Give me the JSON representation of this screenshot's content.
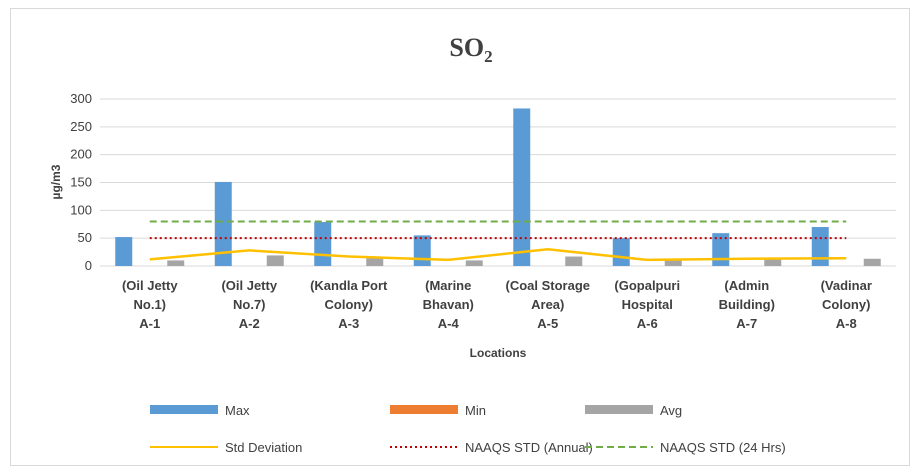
{
  "chart_data": {
    "type": "bar",
    "title": "SO",
    "title_subscript": "2",
    "ylabel": "µg/m3",
    "xlabel": "Locations",
    "ylim": [
      0,
      300
    ],
    "yticks": [
      0,
      50,
      100,
      150,
      200,
      250,
      300
    ],
    "grid": true,
    "legend_position": "bottom",
    "categories": [
      [
        "(Oil Jetty",
        "No.1)",
        "A-1"
      ],
      [
        "(Oil Jetty",
        "No.7)",
        "A-2"
      ],
      [
        "(Kandla Port",
        "Colony)",
        "A-3"
      ],
      [
        "(Marine",
        "Bhavan)",
        "A-4"
      ],
      [
        "(Coal Storage",
        "Area)",
        "A-5"
      ],
      [
        "(Gopalpuri",
        "Hospital",
        "A-6"
      ],
      [
        "(Admin",
        "Building)",
        "A-7"
      ],
      [
        "(Vadinar",
        "Colony)",
        "A-8"
      ]
    ],
    "series": [
      {
        "name": "Max",
        "kind": "bar",
        "color": "#5b9bd5",
        "values": [
          52,
          151,
          79,
          55,
          283,
          50,
          59,
          70
        ]
      },
      {
        "name": "Min",
        "kind": "bar",
        "color": "#ed7d31",
        "values": [
          0,
          0,
          0,
          0,
          0,
          0,
          0,
          0
        ]
      },
      {
        "name": "Avg",
        "kind": "bar",
        "color": "#a5a5a5",
        "values": [
          10,
          19,
          14,
          10,
          17,
          11,
          12,
          13
        ]
      },
      {
        "name": "Std Deviation",
        "kind": "line",
        "color": "#ffc000",
        "values": [
          12,
          28,
          17,
          11,
          30,
          11,
          13,
          14
        ]
      },
      {
        "name": "NAAQS STD (Annual)",
        "kind": "line-dotted",
        "color": "#c00000",
        "values": [
          50,
          50,
          50,
          50,
          50,
          50,
          50,
          50
        ]
      },
      {
        "name": "NAAQS STD (24 Hrs)",
        "kind": "line-dashed",
        "color": "#70ad47",
        "values": [
          80,
          80,
          80,
          80,
          80,
          80,
          80,
          80
        ]
      }
    ]
  }
}
